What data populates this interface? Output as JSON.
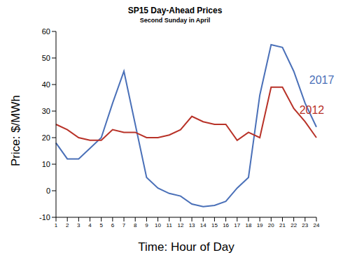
{
  "chart_data": {
    "type": "line",
    "title": "SP15 Day-Ahead Prices",
    "subtitle": "Second Sunday in April",
    "x_label": "Time: Hour of Day",
    "y_label": "Price: $/MWh",
    "categories": [
      "1",
      "2",
      "3",
      "4",
      "5",
      "6",
      "7",
      "8",
      "9",
      "10",
      "11",
      "12",
      "13",
      "14",
      "15",
      "16",
      "17",
      "18",
      "19",
      "20",
      "21",
      "22",
      "23",
      "24"
    ],
    "series": [
      {
        "name": "2017",
        "color": "#4a70b8",
        "values": [
          18,
          12,
          12,
          16,
          20,
          33,
          45,
          25,
          5,
          1,
          -1,
          -2,
          -5,
          -6,
          -5.5,
          -4,
          1,
          5,
          36,
          55,
          54,
          45,
          33,
          24
        ]
      },
      {
        "name": "2012",
        "color": "#b83228",
        "values": [
          25,
          23,
          20,
          19,
          19,
          23,
          22,
          22,
          20,
          20,
          21,
          23,
          28,
          26,
          25,
          25,
          19,
          22,
          20,
          39,
          39,
          31,
          26,
          20
        ]
      }
    ],
    "ylim": [
      -10,
      60
    ],
    "yticks": [
      -10,
      0,
      10,
      20,
      30,
      40,
      50,
      60
    ],
    "grid": false
  }
}
